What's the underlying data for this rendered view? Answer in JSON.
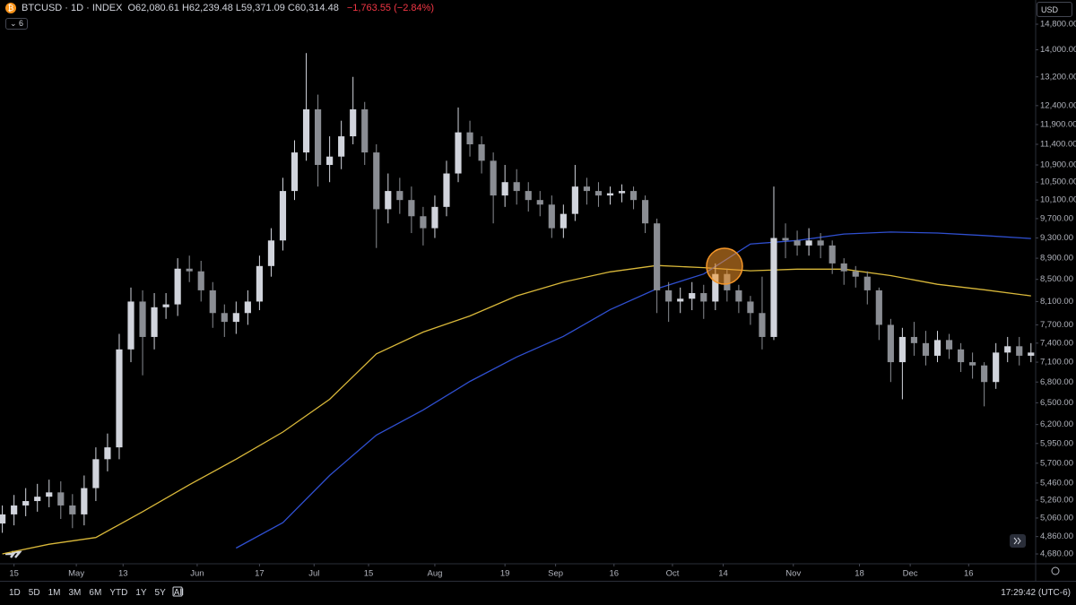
{
  "header": {
    "symbol": "BTCUSD · 1D · INDEX",
    "ohlc": [
      {
        "label": "O",
        "value": "62,080.61"
      },
      {
        "label": "H",
        "value": "62,239.48"
      },
      {
        "label": "L",
        "value": "59,371.09"
      },
      {
        "label": "C",
        "value": "60,314.48"
      }
    ],
    "change": "−1,763.55 (−2.84%)",
    "indicators": "6",
    "currency": "USD"
  },
  "chart_data": {
    "type": "candlestick",
    "open": [
      5000,
      5100,
      5200,
      5250,
      5300,
      5350,
      5200,
      5100,
      5400,
      5750,
      5900,
      7300,
      8100,
      7500,
      8000,
      8050,
      8700,
      8650,
      8300,
      7900,
      7750,
      7900,
      8100,
      8750,
      9250,
      10300,
      11200,
      12300,
      10900,
      11100,
      11600,
      12300,
      11200,
      9900,
      10300,
      10100,
      9750,
      9500,
      9950,
      10700,
      11700,
      11400,
      11000,
      10200,
      10500,
      10300,
      10100,
      10000,
      9500,
      9800,
      10400,
      10300,
      10200,
      10250,
      10300,
      10100,
      9600,
      8300,
      8100,
      8150,
      8250,
      8100,
      8600,
      8300,
      8100,
      7900,
      7500,
      9300,
      9250,
      9150,
      9250,
      9150,
      8800,
      8650,
      8550,
      8300,
      7700,
      7100,
      7500,
      7400,
      7200,
      7450,
      7300,
      7100,
      7050,
      6800,
      7250,
      7350,
      7200
    ],
    "high": [
      5200,
      5320,
      5400,
      5450,
      5500,
      5480,
      5330,
      5550,
      5900,
      6080,
      7550,
      8350,
      8300,
      8250,
      8250,
      8900,
      8950,
      8850,
      8450,
      8050,
      8100,
      8300,
      8950,
      9500,
      10600,
      11500,
      13900,
      12700,
      11600,
      12000,
      13200,
      12500,
      11400,
      10700,
      10600,
      10400,
      9950,
      10200,
      11000,
      12350,
      12000,
      11600,
      11200,
      10900,
      10800,
      10500,
      10300,
      10200,
      10000,
      10900,
      10600,
      10500,
      10400,
      10450,
      10400,
      10200,
      9700,
      8450,
      8350,
      8450,
      8400,
      8800,
      8700,
      8400,
      8200,
      8550,
      10400,
      9600,
      9450,
      9500,
      9400,
      9250,
      8900,
      8750,
      8650,
      8350,
      7800,
      7650,
      7750,
      7600,
      7600,
      7550,
      7400,
      7250,
      7100,
      7400,
      7500,
      7500,
      7400
    ],
    "low": [
      4900,
      4980,
      5080,
      5130,
      5180,
      5050,
      4950,
      4980,
      5250,
      5600,
      5750,
      7100,
      6900,
      7300,
      7800,
      7850,
      8450,
      8100,
      7650,
      7500,
      7550,
      7700,
      7950,
      8550,
      9050,
      10100,
      11000,
      10400,
      10500,
      10800,
      11400,
      10900,
      9100,
      9600,
      9800,
      9400,
      9150,
      9300,
      9750,
      10500,
      11100,
      10700,
      9600,
      9950,
      10000,
      9850,
      9750,
      9300,
      9300,
      9650,
      10000,
      9950,
      10000,
      10050,
      9900,
      9400,
      7900,
      7750,
      7900,
      7950,
      7800,
      7950,
      8100,
      7900,
      7700,
      7300,
      7450,
      8900,
      8950,
      8950,
      8900,
      8600,
      8400,
      8350,
      8050,
      7450,
      6800,
      6550,
      7200,
      7050,
      7100,
      7150,
      6950,
      6850,
      6450,
      6700,
      7100,
      7050,
      7100
    ],
    "close": [
      5100,
      5200,
      5250,
      5300,
      5350,
      5200,
      5100,
      5400,
      5750,
      5900,
      7300,
      8100,
      7500,
      8000,
      8050,
      8700,
      8650,
      8300,
      7900,
      7750,
      7900,
      8100,
      8750,
      9250,
      10300,
      11200,
      12300,
      10900,
      11100,
      11600,
      12300,
      11200,
      9900,
      10300,
      10100,
      9750,
      9500,
      9950,
      10700,
      11700,
      11400,
      11000,
      10200,
      10500,
      10300,
      10100,
      10000,
      9500,
      9800,
      10400,
      10300,
      10200,
      10250,
      10300,
      10100,
      9600,
      8300,
      8100,
      8150,
      8250,
      8100,
      8600,
      8300,
      8100,
      7900,
      7500,
      9300,
      9250,
      9150,
      9250,
      9150,
      8800,
      8650,
      8550,
      8300,
      7700,
      7100,
      7500,
      7400,
      7200,
      7450,
      7300,
      7100,
      7050,
      6800,
      7250,
      7350,
      7200,
      7250
    ],
    "up_color": "#d1d4dc",
    "down_color": "#8a8d93",
    "overlays": [
      {
        "type": "line",
        "color": "#d9b83a",
        "x": [
          0,
          4,
          8,
          12,
          16,
          20,
          24,
          28,
          32,
          36,
          40,
          44,
          48,
          52,
          56,
          60,
          64,
          68,
          72,
          76,
          80,
          84,
          88
        ],
        "values": [
          4680,
          4780,
          4850,
          5130,
          5440,
          5750,
          6100,
          6550,
          7230,
          7580,
          7850,
          8200,
          8450,
          8640,
          8760,
          8720,
          8660,
          8690,
          8690,
          8570,
          8410,
          8310,
          8200
        ]
      },
      {
        "type": "line",
        "color": "#2f4fd0",
        "x": [
          0,
          4,
          8,
          12,
          16,
          20,
          24,
          28,
          32,
          36,
          40,
          44,
          48,
          52,
          56,
          60,
          64,
          68,
          72,
          76,
          80,
          84,
          88
        ],
        "values": [
          null,
          null,
          null,
          null,
          null,
          4740,
          5010,
          5550,
          6060,
          6400,
          6810,
          7180,
          7510,
          7960,
          8330,
          8600,
          9180,
          9250,
          9380,
          9420,
          9400,
          9350,
          9290
        ]
      }
    ],
    "xlim": [
      -0.2,
      88.4
    ],
    "xticks": [
      {
        "value": 1,
        "label": "15"
      },
      {
        "value": 6.33,
        "label": "May"
      },
      {
        "value": 10.33,
        "label": "13"
      },
      {
        "value": 16.67,
        "label": "Jun"
      },
      {
        "value": 22,
        "label": "17"
      },
      {
        "value": 26.67,
        "label": "Jul"
      },
      {
        "value": 31.33,
        "label": "15"
      },
      {
        "value": 37,
        "label": "Aug"
      },
      {
        "value": 43,
        "label": "19"
      },
      {
        "value": 47.33,
        "label": "Sep"
      },
      {
        "value": 52.33,
        "label": "16"
      },
      {
        "value": 57.33,
        "label": "Oct"
      },
      {
        "value": 61.67,
        "label": "14"
      },
      {
        "value": 67.67,
        "label": "Nov"
      },
      {
        "value": 73.33,
        "label": "18"
      },
      {
        "value": 77.67,
        "label": "Dec"
      },
      {
        "value": 82.67,
        "label": "16"
      }
    ],
    "ylim": [
      4590,
      15600
    ],
    "log_scale": true,
    "grid": false,
    "yticks": [
      {
        "value": 14800,
        "label": "14,800.00"
      },
      {
        "value": 14000,
        "label": "14,000.00"
      },
      {
        "value": 13200,
        "label": "13,200.00"
      },
      {
        "value": 12400,
        "label": "12,400.00"
      },
      {
        "value": 11900,
        "label": "11,900.00"
      },
      {
        "value": 11400,
        "label": "11,400.00"
      },
      {
        "value": 10900,
        "label": "10,900.00"
      },
      {
        "value": 10500,
        "label": "10,500.00"
      },
      {
        "value": 10100,
        "label": "10,100.00"
      },
      {
        "value": 9700,
        "label": "9,700.00"
      },
      {
        "value": 9300,
        "label": "9,300.00"
      },
      {
        "value": 8900,
        "label": "8,900.00"
      },
      {
        "value": 8500,
        "label": "8,500.00"
      },
      {
        "value": 8100,
        "label": "8,100.00"
      },
      {
        "value": 7700,
        "label": "7,700.00"
      },
      {
        "value": 7400,
        "label": "7,400.00"
      },
      {
        "value": 7100,
        "label": "7,100.00"
      },
      {
        "value": 6800,
        "label": "6,800.00"
      },
      {
        "value": 6500,
        "label": "6,500.00"
      },
      {
        "value": 6200,
        "label": "6,200.00"
      },
      {
        "value": 5950,
        "label": "5,950.00"
      },
      {
        "value": 5700,
        "label": "5,700.00"
      },
      {
        "value": 5460,
        "label": "5,460.00"
      },
      {
        "value": 5260,
        "label": "5,260.00"
      },
      {
        "value": 5060,
        "label": "5,060.00"
      },
      {
        "value": 4860,
        "label": "4,860.00"
      },
      {
        "value": 4680,
        "label": "4,680.00"
      }
    ]
  },
  "footer": {
    "ranges": [
      "1D",
      "5D",
      "1M",
      "3M",
      "6M",
      "YTD",
      "1Y",
      "5Y",
      "All"
    ],
    "time": "17:29:42 (UTC-6)"
  }
}
